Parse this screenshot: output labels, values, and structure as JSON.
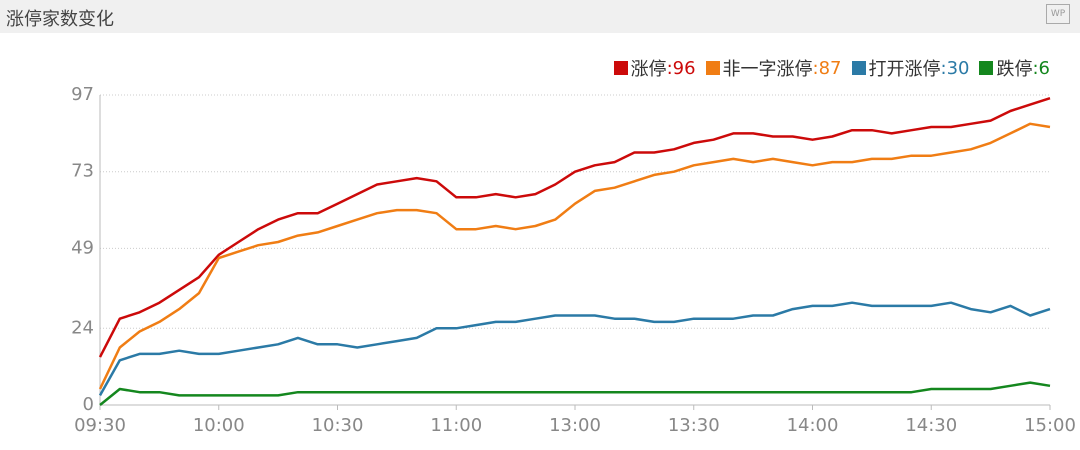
{
  "chart_data": {
    "type": "line",
    "title": "涨停家数变化",
    "icon_label": "WP",
    "x": [
      0,
      5,
      10,
      15,
      20,
      25,
      30,
      35,
      40,
      45,
      50,
      55,
      60,
      65,
      70,
      75,
      80,
      85,
      90,
      95,
      100,
      105,
      110,
      115,
      120,
      125,
      130,
      135,
      140,
      145,
      150,
      155,
      160,
      165,
      170,
      175,
      180,
      185,
      190,
      195,
      200,
      205,
      210,
      215,
      220,
      225,
      230,
      235,
      240
    ],
    "xlim": [
      0,
      240
    ],
    "xticks": [
      {
        "value": 0,
        "label": "09:30"
      },
      {
        "value": 30,
        "label": "10:00"
      },
      {
        "value": 60,
        "label": "10:30"
      },
      {
        "value": 90,
        "label": "11:00"
      },
      {
        "value": 120,
        "label": "13:00"
      },
      {
        "value": 150,
        "label": "13:30"
      },
      {
        "value": 180,
        "label": "14:00"
      },
      {
        "value": 210,
        "label": "14:30"
      },
      {
        "value": 240,
        "label": "15:00"
      }
    ],
    "ylim": [
      0,
      97
    ],
    "yticks": [
      0,
      24,
      49,
      73,
      97
    ],
    "grid": true,
    "series": [
      {
        "name": "涨停",
        "color": "#cc0a0a",
        "value_label": ":96",
        "values": [
          15,
          27,
          29,
          32,
          36,
          40,
          47,
          51,
          55,
          58,
          60,
          60,
          63,
          66,
          69,
          70,
          71,
          70,
          65,
          65,
          66,
          65,
          66,
          69,
          73,
          75,
          76,
          79,
          79,
          80,
          82,
          83,
          85,
          85,
          84,
          84,
          83,
          84,
          86,
          86,
          85,
          86,
          87,
          87,
          88,
          89,
          92,
          94,
          96
        ]
      },
      {
        "name": "非一字涨停",
        "color": "#f07d14",
        "value_label": ":87",
        "values": [
          5,
          18,
          23,
          26,
          30,
          35,
          46,
          48,
          50,
          51,
          53,
          54,
          56,
          58,
          60,
          61,
          61,
          60,
          55,
          55,
          56,
          55,
          56,
          58,
          63,
          67,
          68,
          70,
          72,
          73,
          75,
          76,
          77,
          76,
          77,
          76,
          75,
          76,
          76,
          77,
          77,
          78,
          78,
          79,
          80,
          82,
          85,
          88,
          87
        ]
      },
      {
        "name": "打开涨停",
        "color": "#2b7aa6",
        "value_label": ":30",
        "values": [
          3,
          14,
          16,
          16,
          17,
          16,
          16,
          17,
          18,
          19,
          21,
          19,
          19,
          18,
          19,
          20,
          21,
          24,
          24,
          25,
          26,
          26,
          27,
          28,
          28,
          28,
          27,
          27,
          26,
          26,
          27,
          27,
          27,
          28,
          28,
          30,
          31,
          31,
          32,
          31,
          31,
          31,
          31,
          32,
          30,
          29,
          31,
          28,
          30
        ]
      },
      {
        "name": "跌停",
        "color": "#14871e",
        "value_label": ":6",
        "values": [
          0,
          5,
          4,
          4,
          3,
          3,
          3,
          3,
          3,
          3,
          4,
          4,
          4,
          4,
          4,
          4,
          4,
          4,
          4,
          4,
          4,
          4,
          4,
          4,
          4,
          4,
          4,
          4,
          4,
          4,
          4,
          4,
          4,
          4,
          4,
          4,
          4,
          4,
          4,
          4,
          4,
          4,
          5,
          5,
          5,
          5,
          6,
          7,
          6
        ]
      }
    ]
  }
}
